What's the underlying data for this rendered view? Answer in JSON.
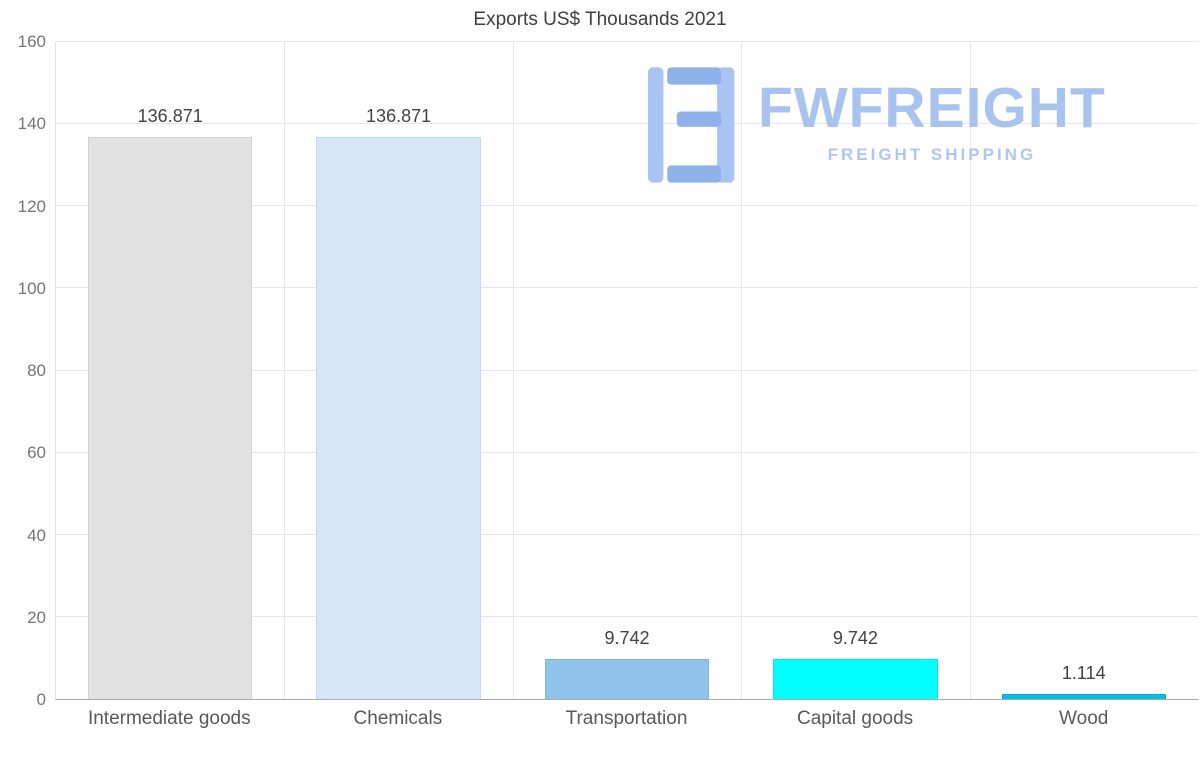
{
  "chart_data": {
    "type": "bar",
    "title": "Exports US$ Thousands 2021",
    "categories": [
      "Intermediate goods",
      "Chemicals",
      "Transportation",
      "Capital goods",
      "Wood"
    ],
    "values": [
      136.871,
      136.871,
      9.742,
      9.742,
      1.114
    ],
    "value_labels": [
      "136.871",
      "136.871",
      "9.742",
      "9.742",
      "1.114"
    ],
    "bar_colors": [
      "#e2e2e2",
      "#d6e5f7",
      "#8fc3e9",
      "#00ffff",
      "#00bfef"
    ],
    "bar_border_colors": [
      "#d2d2d2",
      "#c4d9f0",
      "#7cb5e0",
      "#00e9f2",
      "#00aee0"
    ],
    "xlabel": "",
    "ylabel": "",
    "ylim": [
      0,
      160
    ],
    "yticks": [
      0,
      20,
      40,
      60,
      80,
      100,
      120,
      140,
      160
    ],
    "grid": true,
    "legend": false
  },
  "logo": {
    "brand": "FWFREIGHT",
    "subtitle": "FREIGHT SHIPPING",
    "glyph_color_light": "#a9c4f1",
    "glyph_color_dark": "#8fb2ea"
  }
}
